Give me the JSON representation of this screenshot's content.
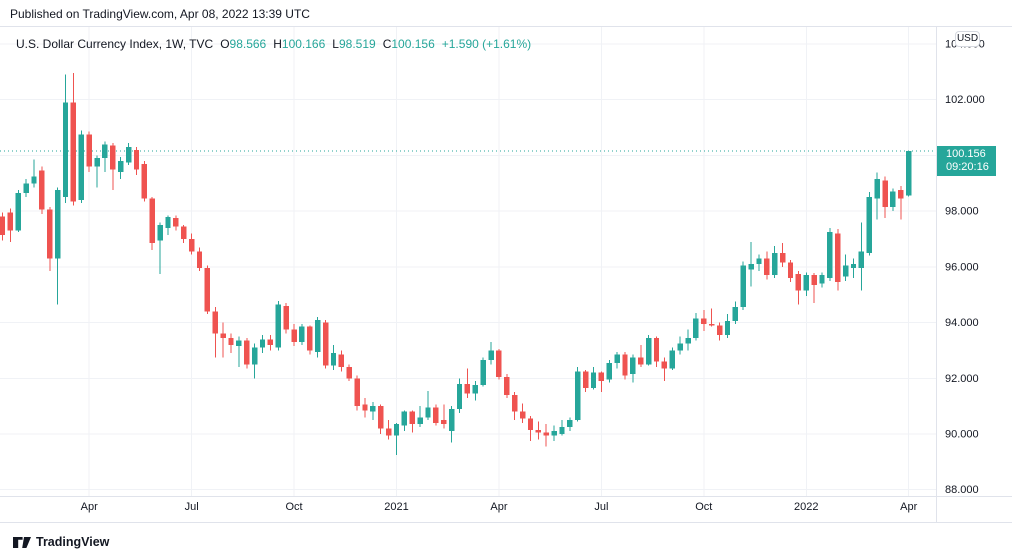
{
  "published_bar": {
    "text": "Published on TradingView.com, Apr 08, 2022 13:39 UTC"
  },
  "legend": {
    "title": "U.S. Dollar Currency Index, 1W, TVC",
    "open_label": "O",
    "open": "98.566",
    "high_label": "H",
    "high": "100.166",
    "low_label": "L",
    "low": "98.519",
    "close_label": "C",
    "close": "100.156",
    "change": "+1.590 (+1.61%)"
  },
  "price_axis": {
    "currency_button": "USD",
    "last_price": "100.156",
    "countdown": "09:20:16"
  },
  "footer": {
    "brand": "TradingView"
  },
  "chart_data": {
    "type": "candlestick",
    "title": "U.S. Dollar Currency Index",
    "timeframe": "1W",
    "exchange": "TVC",
    "grid": true,
    "y_axis": {
      "min": 88,
      "max": 104,
      "step": 2,
      "decimals": 3
    },
    "x_ticks": [
      {
        "label": "Apr",
        "candle": 11
      },
      {
        "label": "Jul",
        "candle": 24
      },
      {
        "label": "Oct",
        "candle": 37
      },
      {
        "label": "2021",
        "candle": 50
      },
      {
        "label": "Apr",
        "candle": 63
      },
      {
        "label": "Jul",
        "candle": 76
      },
      {
        "label": "Oct",
        "candle": 89
      },
      {
        "label": "2022",
        "candle": 102
      },
      {
        "label": "Apr",
        "candle": 115
      }
    ],
    "colors": {
      "up": "#26a69a",
      "down": "#ef5350"
    },
    "last_close": 100.156,
    "candles": [
      [
        97.8,
        97.95,
        96.95,
        97.15
      ],
      [
        97.95,
        98.1,
        96.9,
        97.3
      ],
      [
        97.3,
        98.75,
        97.25,
        98.65
      ],
      [
        98.65,
        99.15,
        98.5,
        99.0
      ],
      [
        99.0,
        99.85,
        98.85,
        99.25
      ],
      [
        99.45,
        99.6,
        97.9,
        98.05
      ],
      [
        98.05,
        98.15,
        95.85,
        96.3
      ],
      [
        96.3,
        98.85,
        94.65,
        98.75
      ],
      [
        98.5,
        102.9,
        98.3,
        101.9
      ],
      [
        101.9,
        102.95,
        98.2,
        98.35
      ],
      [
        98.4,
        100.9,
        98.3,
        100.75
      ],
      [
        100.75,
        100.85,
        99.4,
        99.6
      ],
      [
        99.6,
        100.0,
        98.85,
        99.9
      ],
      [
        99.9,
        100.5,
        99.4,
        100.4
      ],
      [
        100.35,
        100.45,
        98.75,
        99.5
      ],
      [
        99.4,
        99.95,
        99.15,
        99.8
      ],
      [
        99.75,
        100.45,
        99.65,
        100.3
      ],
      [
        100.2,
        100.3,
        99.3,
        99.5
      ],
      [
        99.7,
        99.8,
        98.35,
        98.45
      ],
      [
        98.45,
        98.5,
        96.6,
        96.85
      ],
      [
        96.95,
        97.6,
        95.75,
        97.5
      ],
      [
        97.4,
        97.85,
        97.15,
        97.78
      ],
      [
        97.75,
        97.85,
        97.3,
        97.45
      ],
      [
        97.45,
        97.5,
        96.85,
        97.0
      ],
      [
        97.0,
        97.2,
        96.45,
        96.55
      ],
      [
        96.55,
        96.7,
        95.85,
        95.95
      ],
      [
        95.95,
        96.05,
        94.3,
        94.4
      ],
      [
        94.4,
        94.55,
        92.75,
        93.6
      ],
      [
        93.6,
        94.0,
        92.75,
        93.45
      ],
      [
        93.45,
        93.6,
        92.9,
        93.2
      ],
      [
        93.15,
        93.5,
        92.4,
        93.35
      ],
      [
        93.35,
        93.45,
        92.35,
        92.5
      ],
      [
        92.5,
        93.25,
        92.0,
        93.1
      ],
      [
        93.1,
        93.55,
        92.9,
        93.4
      ],
      [
        93.4,
        93.55,
        93.0,
        93.2
      ],
      [
        93.1,
        94.78,
        93.0,
        94.65
      ],
      [
        94.6,
        94.7,
        93.6,
        93.75
      ],
      [
        93.75,
        93.95,
        93.15,
        93.3
      ],
      [
        93.3,
        93.95,
        93.2,
        93.85
      ],
      [
        93.85,
        93.9,
        92.85,
        93.0
      ],
      [
        92.95,
        94.2,
        92.75,
        94.1
      ],
      [
        94.0,
        94.1,
        92.35,
        92.45
      ],
      [
        92.45,
        93.2,
        92.3,
        92.9
      ],
      [
        92.85,
        93.0,
        92.25,
        92.4
      ],
      [
        92.4,
        92.5,
        91.9,
        92.0
      ],
      [
        92.0,
        92.1,
        90.85,
        91.0
      ],
      [
        91.05,
        91.3,
        90.6,
        90.85
      ],
      [
        90.8,
        91.15,
        90.5,
        91.0
      ],
      [
        91.0,
        91.05,
        90.0,
        90.2
      ],
      [
        90.2,
        90.5,
        89.8,
        89.95
      ],
      [
        89.95,
        90.4,
        89.25,
        90.35
      ],
      [
        90.3,
        90.85,
        90.1,
        90.8
      ],
      [
        90.8,
        90.85,
        90.05,
        90.35
      ],
      [
        90.35,
        91.0,
        90.25,
        90.6
      ],
      [
        90.6,
        91.55,
        90.5,
        90.95
      ],
      [
        90.95,
        91.05,
        90.3,
        90.4
      ],
      [
        90.5,
        91.05,
        90.2,
        90.35
      ],
      [
        90.1,
        91.0,
        89.7,
        90.9
      ],
      [
        90.9,
        92.0,
        90.75,
        91.8
      ],
      [
        91.8,
        92.35,
        91.3,
        91.45
      ],
      [
        91.45,
        91.9,
        91.2,
        91.75
      ],
      [
        91.75,
        92.75,
        91.7,
        92.65
      ],
      [
        92.65,
        93.3,
        92.5,
        93.0
      ],
      [
        93.0,
        93.05,
        91.95,
        92.05
      ],
      [
        92.05,
        92.15,
        91.3,
        91.4
      ],
      [
        91.4,
        91.5,
        90.5,
        90.8
      ],
      [
        90.8,
        91.1,
        90.4,
        90.55
      ],
      [
        90.55,
        90.65,
        89.75,
        90.15
      ],
      [
        90.15,
        90.45,
        89.8,
        90.05
      ],
      [
        90.05,
        90.35,
        89.55,
        89.95
      ],
      [
        89.95,
        90.3,
        89.75,
        90.1
      ],
      [
        90.0,
        90.5,
        89.95,
        90.25
      ],
      [
        90.25,
        90.6,
        90.1,
        90.5
      ],
      [
        90.5,
        92.4,
        90.45,
        92.25
      ],
      [
        92.25,
        92.3,
        91.5,
        91.65
      ],
      [
        91.65,
        92.4,
        91.6,
        92.2
      ],
      [
        92.2,
        92.25,
        91.5,
        91.9
      ],
      [
        91.95,
        92.65,
        91.85,
        92.55
      ],
      [
        92.55,
        92.95,
        92.35,
        92.85
      ],
      [
        92.85,
        92.95,
        91.95,
        92.1
      ],
      [
        92.15,
        92.85,
        91.85,
        92.75
      ],
      [
        92.75,
        93.2,
        92.4,
        92.5
      ],
      [
        92.5,
        93.55,
        92.45,
        93.45
      ],
      [
        93.45,
        93.5,
        92.4,
        92.6
      ],
      [
        92.6,
        92.75,
        91.9,
        92.35
      ],
      [
        92.35,
        93.1,
        92.3,
        93.0
      ],
      [
        93.0,
        93.5,
        92.85,
        93.25
      ],
      [
        93.25,
        93.75,
        93.0,
        93.45
      ],
      [
        93.45,
        94.35,
        93.35,
        94.15
      ],
      [
        94.15,
        94.45,
        93.7,
        93.95
      ],
      [
        93.95,
        94.5,
        93.85,
        93.9
      ],
      [
        93.9,
        94.0,
        93.35,
        93.55
      ],
      [
        93.55,
        94.3,
        93.45,
        94.05
      ],
      [
        94.05,
        94.75,
        93.95,
        94.55
      ],
      [
        94.55,
        96.2,
        94.45,
        96.05
      ],
      [
        95.9,
        96.9,
        95.3,
        96.1
      ],
      [
        96.1,
        96.45,
        95.85,
        96.3
      ],
      [
        96.3,
        96.55,
        95.55,
        95.7
      ],
      [
        95.7,
        96.75,
        95.6,
        96.5
      ],
      [
        96.5,
        96.85,
        96.0,
        96.15
      ],
      [
        96.15,
        96.25,
        95.45,
        95.6
      ],
      [
        95.75,
        95.85,
        94.65,
        95.15
      ],
      [
        95.15,
        95.8,
        94.95,
        95.7
      ],
      [
        95.7,
        95.78,
        94.7,
        95.35
      ],
      [
        95.4,
        95.8,
        95.25,
        95.7
      ],
      [
        95.6,
        97.4,
        95.5,
        97.25
      ],
      [
        97.2,
        97.35,
        95.15,
        95.45
      ],
      [
        95.65,
        96.45,
        95.5,
        96.05
      ],
      [
        95.95,
        96.3,
        95.6,
        96.1
      ],
      [
        95.95,
        97.6,
        95.15,
        96.55
      ],
      [
        96.5,
        98.68,
        96.4,
        98.5
      ],
      [
        98.45,
        99.38,
        97.7,
        99.15
      ],
      [
        99.1,
        99.25,
        97.75,
        98.15
      ],
      [
        98.15,
        98.82,
        98.0,
        98.7
      ],
      [
        98.75,
        98.9,
        97.7,
        98.45
      ],
      [
        98.566,
        100.166,
        98.519,
        100.156
      ]
    ]
  }
}
